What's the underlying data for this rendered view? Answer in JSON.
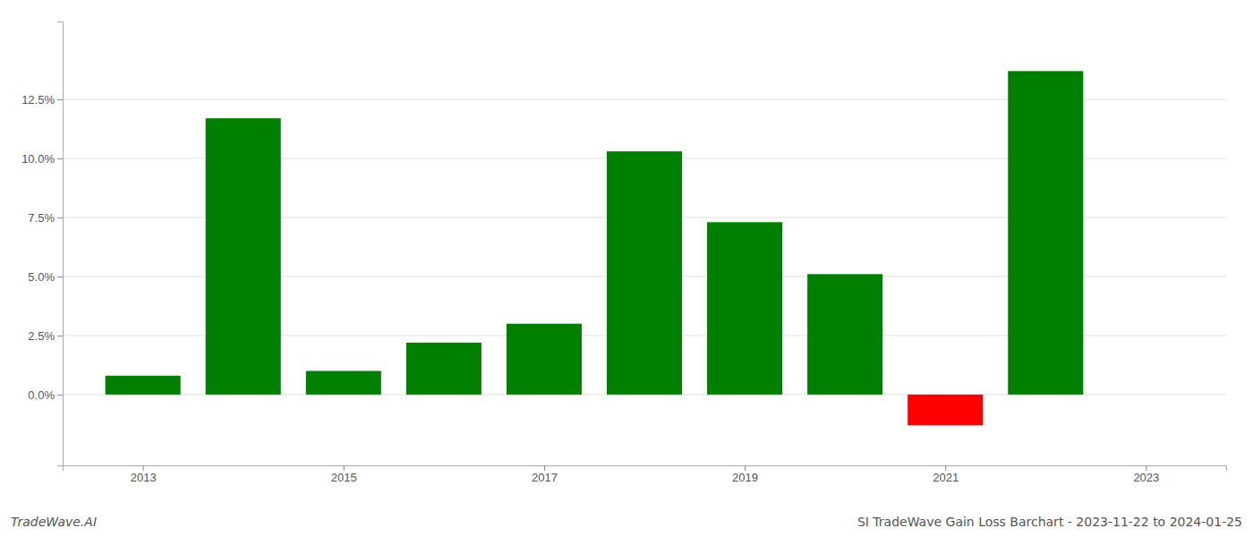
{
  "chart_data": {
    "type": "bar",
    "title": "SI TradeWave Gain Loss Barchart - 2023-11-22 to 2024-01-25",
    "annotations": [
      "TradeWave.AI"
    ],
    "x": [
      2013,
      2014,
      2015,
      2016,
      2017,
      2018,
      2019,
      2020,
      2021,
      2022
    ],
    "values": [
      0.008,
      0.117,
      0.01,
      0.022,
      0.03,
      0.103,
      0.073,
      0.051,
      -0.013,
      0.137
    ],
    "colors": [
      "#008000",
      "#008000",
      "#008000",
      "#008000",
      "#008000",
      "#008000",
      "#008000",
      "#008000",
      "#ff0000",
      "#008000"
    ],
    "xlim": [
      2012.2,
      2023.8
    ],
    "xticks": [
      2013,
      2015,
      2017,
      2019,
      2021,
      2023
    ],
    "ylim": [
      -0.03,
      0.158
    ],
    "yticks": [
      {
        "value": 0.0,
        "label": "0.0%"
      },
      {
        "value": 0.025,
        "label": "2.5%"
      },
      {
        "value": 0.05,
        "label": "5.0%"
      },
      {
        "value": 0.075,
        "label": "7.5%"
      },
      {
        "value": 0.1,
        "label": "10.0%"
      },
      {
        "value": 0.125,
        "label": "12.5%"
      }
    ],
    "grid": true
  }
}
